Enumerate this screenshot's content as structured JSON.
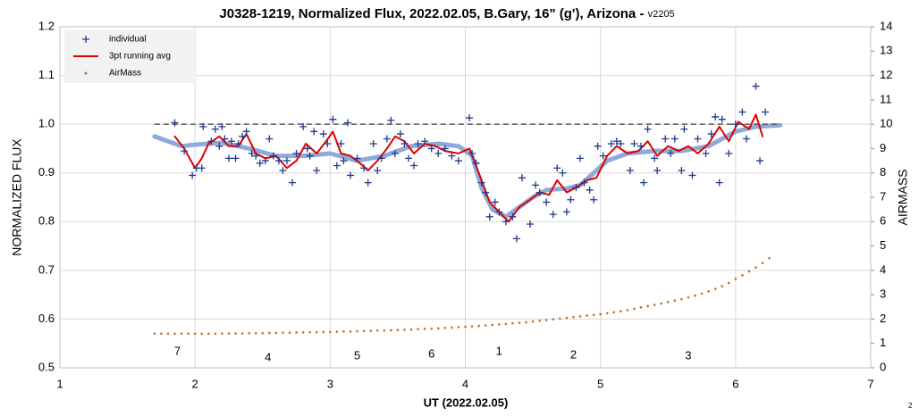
{
  "chart_data": {
    "type": "scatter",
    "title": "J0328-1219, Normalized Flux, 2022.02.05, B.Gary, 16\" (g'), Arizona - ",
    "title_version": "v2205",
    "x_label": "UT (2022.02.05)",
    "y_label": "NORMALIZED FLUX",
    "y2_label": "AIRMASS",
    "xlim": [
      1,
      7
    ],
    "xticks": [
      1,
      2,
      3,
      4,
      5,
      6,
      7
    ],
    "ylim": [
      0.5,
      1.2
    ],
    "yticks": [
      0.5,
      0.6,
      0.7,
      0.8,
      0.9,
      {
        "value": 1.0,
        "label": "1.0"
      },
      1.1,
      1.2
    ],
    "y2lim": [
      0,
      14
    ],
    "y2ticks": [
      0,
      1,
      2,
      3,
      4,
      5,
      6,
      7,
      8,
      9,
      10,
      11,
      12,
      13,
      14
    ],
    "grid": true,
    "legend": "top-left",
    "annotations": [
      "7",
      "4",
      "5",
      "6",
      "1",
      "2",
      "3"
    ],
    "corner_label": "2",
    "series": [
      {
        "name": "individual",
        "kind": "scatter",
        "color": "#1f3b8c",
        "x": [
          1.85,
          1.92,
          1.98,
          2.01,
          2.05,
          2.06,
          2.12,
          2.15,
          2.18,
          2.2,
          2.22,
          2.25,
          2.27,
          2.3,
          2.32,
          2.35,
          2.38,
          2.42,
          2.45,
          2.48,
          2.52,
          2.55,
          2.58,
          2.62,
          2.65,
          2.68,
          2.72,
          2.75,
          2.8,
          2.83,
          2.85,
          2.88,
          2.9,
          2.95,
          2.98,
          3.02,
          3.05,
          3.08,
          3.1,
          3.13,
          3.15,
          3.2,
          3.25,
          3.28,
          3.32,
          3.35,
          3.38,
          3.42,
          3.45,
          3.48,
          3.52,
          3.55,
          3.58,
          3.62,
          3.65,
          3.7,
          3.75,
          3.8,
          3.85,
          3.9,
          3.95,
          4.03,
          4.05,
          4.08,
          4.12,
          4.15,
          4.18,
          4.22,
          4.25,
          4.3,
          4.35,
          4.38,
          4.42,
          4.48,
          4.52,
          4.55,
          4.6,
          4.65,
          4.68,
          4.72,
          4.75,
          4.78,
          4.82,
          4.85,
          4.88,
          4.92,
          4.95,
          4.98,
          5.02,
          5.08,
          5.12,
          5.15,
          5.22,
          5.25,
          5.3,
          5.32,
          5.35,
          5.4,
          5.42,
          5.48,
          5.52,
          5.55,
          5.6,
          5.62,
          5.68,
          5.72,
          5.78,
          5.82,
          5.85,
          5.88,
          5.9,
          5.95,
          6.0,
          6.05,
          6.08,
          6.15,
          6.18,
          6.22
        ],
        "values": [
          1.003,
          0.945,
          0.895,
          0.91,
          0.91,
          0.995,
          0.965,
          0.99,
          0.955,
          0.995,
          0.97,
          0.93,
          0.965,
          0.93,
          0.96,
          0.975,
          0.985,
          0.94,
          0.935,
          0.92,
          0.925,
          0.97,
          0.935,
          0.925,
          0.905,
          0.925,
          0.88,
          0.94,
          0.995,
          0.95,
          0.935,
          0.985,
          0.905,
          0.98,
          0.96,
          1.01,
          0.915,
          0.96,
          0.925,
          1.003,
          0.895,
          0.93,
          0.91,
          0.88,
          0.96,
          0.905,
          0.93,
          0.97,
          1.008,
          0.94,
          0.98,
          0.96,
          0.93,
          0.915,
          0.96,
          0.965,
          0.95,
          0.94,
          0.95,
          0.935,
          0.925,
          1.013,
          0.94,
          0.92,
          0.88,
          0.86,
          0.81,
          0.84,
          0.82,
          0.8,
          0.81,
          0.765,
          0.89,
          0.795,
          0.875,
          0.86,
          0.84,
          0.815,
          0.91,
          0.9,
          0.82,
          0.845,
          0.87,
          0.93,
          0.88,
          0.865,
          0.845,
          0.955,
          0.935,
          0.96,
          0.965,
          0.96,
          0.905,
          0.96,
          0.955,
          0.88,
          0.99,
          0.93,
          0.905,
          0.97,
          0.94,
          0.97,
          0.905,
          0.99,
          0.895,
          0.97,
          0.94,
          0.98,
          1.015,
          0.88,
          1.01,
          0.94,
          1.0,
          1.025,
          0.97,
          1.078,
          0.925,
          1.025
        ]
      },
      {
        "name": "3pt running avg",
        "kind": "line",
        "color": "#e00000",
        "x": [
          1.85,
          1.92,
          2.0,
          2.05,
          2.1,
          2.18,
          2.25,
          2.32,
          2.38,
          2.45,
          2.52,
          2.6,
          2.68,
          2.75,
          2.82,
          2.9,
          2.97,
          3.02,
          3.08,
          3.15,
          3.22,
          3.28,
          3.35,
          3.42,
          3.48,
          3.55,
          3.62,
          3.7,
          3.78,
          3.85,
          3.95,
          4.03,
          4.1,
          4.18,
          4.25,
          4.32,
          4.4,
          4.48,
          4.55,
          4.62,
          4.68,
          4.75,
          4.82,
          4.9,
          4.97,
          5.05,
          5.12,
          5.2,
          5.28,
          5.35,
          5.42,
          5.5,
          5.58,
          5.65,
          5.72,
          5.8,
          5.88,
          5.95,
          6.02,
          6.1,
          6.15,
          6.2
        ],
        "values": [
          0.975,
          0.95,
          0.91,
          0.93,
          0.96,
          0.975,
          0.955,
          0.955,
          0.98,
          0.94,
          0.93,
          0.935,
          0.91,
          0.925,
          0.96,
          0.94,
          0.965,
          0.985,
          0.94,
          0.935,
          0.92,
          0.905,
          0.925,
          0.95,
          0.975,
          0.965,
          0.94,
          0.96,
          0.955,
          0.945,
          0.94,
          0.95,
          0.9,
          0.84,
          0.82,
          0.8,
          0.83,
          0.845,
          0.86,
          0.855,
          0.885,
          0.86,
          0.87,
          0.885,
          0.89,
          0.935,
          0.955,
          0.94,
          0.945,
          0.965,
          0.935,
          0.955,
          0.945,
          0.955,
          0.94,
          0.96,
          0.995,
          0.965,
          1.005,
          0.99,
          1.02,
          0.975
        ]
      },
      {
        "name": "AirMass",
        "kind": "dots",
        "axis": "y2",
        "color": "#c0702c",
        "x": [
          1.7,
          1.75,
          1.8,
          1.85,
          1.9,
          1.95,
          2.0,
          2.05,
          2.1,
          2.15,
          2.2,
          2.25,
          2.3,
          2.35,
          2.4,
          2.45,
          2.5,
          2.55,
          2.6,
          2.65,
          2.7,
          2.75,
          2.8,
          2.85,
          2.9,
          2.95,
          3.0,
          3.05,
          3.1,
          3.15,
          3.2,
          3.25,
          3.3,
          3.35,
          3.4,
          3.45,
          3.5,
          3.55,
          3.6,
          3.65,
          3.7,
          3.75,
          3.8,
          3.85,
          3.9,
          3.95,
          4.0,
          4.05,
          4.1,
          4.15,
          4.2,
          4.25,
          4.3,
          4.35,
          4.4,
          4.45,
          4.5,
          4.55,
          4.6,
          4.65,
          4.7,
          4.75,
          4.8,
          4.85,
          4.9,
          4.95,
          5.0,
          5.05,
          5.1,
          5.15,
          5.2,
          5.25,
          5.3,
          5.35,
          5.4,
          5.45,
          5.5,
          5.55,
          5.6,
          5.65,
          5.7,
          5.75,
          5.8,
          5.85,
          5.9,
          5.95,
          6.0,
          6.05,
          6.1,
          6.15,
          6.2,
          6.25
        ],
        "values": [
          1.4,
          1.4,
          1.4,
          1.4,
          1.4,
          1.4,
          1.4,
          1.4,
          1.4,
          1.4,
          1.41,
          1.41,
          1.41,
          1.41,
          1.42,
          1.42,
          1.42,
          1.43,
          1.43,
          1.44,
          1.44,
          1.45,
          1.45,
          1.46,
          1.46,
          1.47,
          1.47,
          1.48,
          1.49,
          1.49,
          1.5,
          1.51,
          1.52,
          1.53,
          1.53,
          1.54,
          1.55,
          1.56,
          1.57,
          1.59,
          1.6,
          1.61,
          1.62,
          1.64,
          1.65,
          1.67,
          1.68,
          1.7,
          1.72,
          1.74,
          1.76,
          1.78,
          1.8,
          1.83,
          1.85,
          1.87,
          1.9,
          1.93,
          1.96,
          1.99,
          2.02,
          2.05,
          2.08,
          2.11,
          2.14,
          2.17,
          2.2,
          2.24,
          2.28,
          2.32,
          2.37,
          2.42,
          2.48,
          2.53,
          2.58,
          2.64,
          2.7,
          2.76,
          2.82,
          2.89,
          2.96,
          3.05,
          3.14,
          3.24,
          3.35,
          3.48,
          3.65,
          3.8,
          3.96,
          4.12,
          4.3,
          4.5
        ]
      },
      {
        "kind": "line",
        "color": "#8eaadb",
        "width": 5,
        "x": [
          1.7,
          1.8,
          1.9,
          2.0,
          2.2,
          2.4,
          2.6,
          2.8,
          3.0,
          3.2,
          3.4,
          3.6,
          3.8,
          3.95,
          4.05,
          4.12,
          4.2,
          4.3,
          4.4,
          4.5,
          4.6,
          4.75,
          4.85,
          4.95,
          5.05,
          5.2,
          5.4,
          5.6,
          5.8,
          6.0,
          6.15,
          6.33
        ],
        "values": [
          0.975,
          0.965,
          0.955,
          0.958,
          0.962,
          0.95,
          0.935,
          0.935,
          0.94,
          0.925,
          0.935,
          0.955,
          0.96,
          0.955,
          0.935,
          0.87,
          0.825,
          0.81,
          0.83,
          0.85,
          0.865,
          0.868,
          0.875,
          0.9,
          0.925,
          0.94,
          0.945,
          0.945,
          0.955,
          0.985,
          0.995,
          0.998
        ]
      },
      {
        "kind": "line",
        "color": "#555555",
        "dashed": true,
        "x": [
          1.7,
          6.33
        ],
        "values": [
          1.0,
          1.0
        ]
      }
    ]
  }
}
